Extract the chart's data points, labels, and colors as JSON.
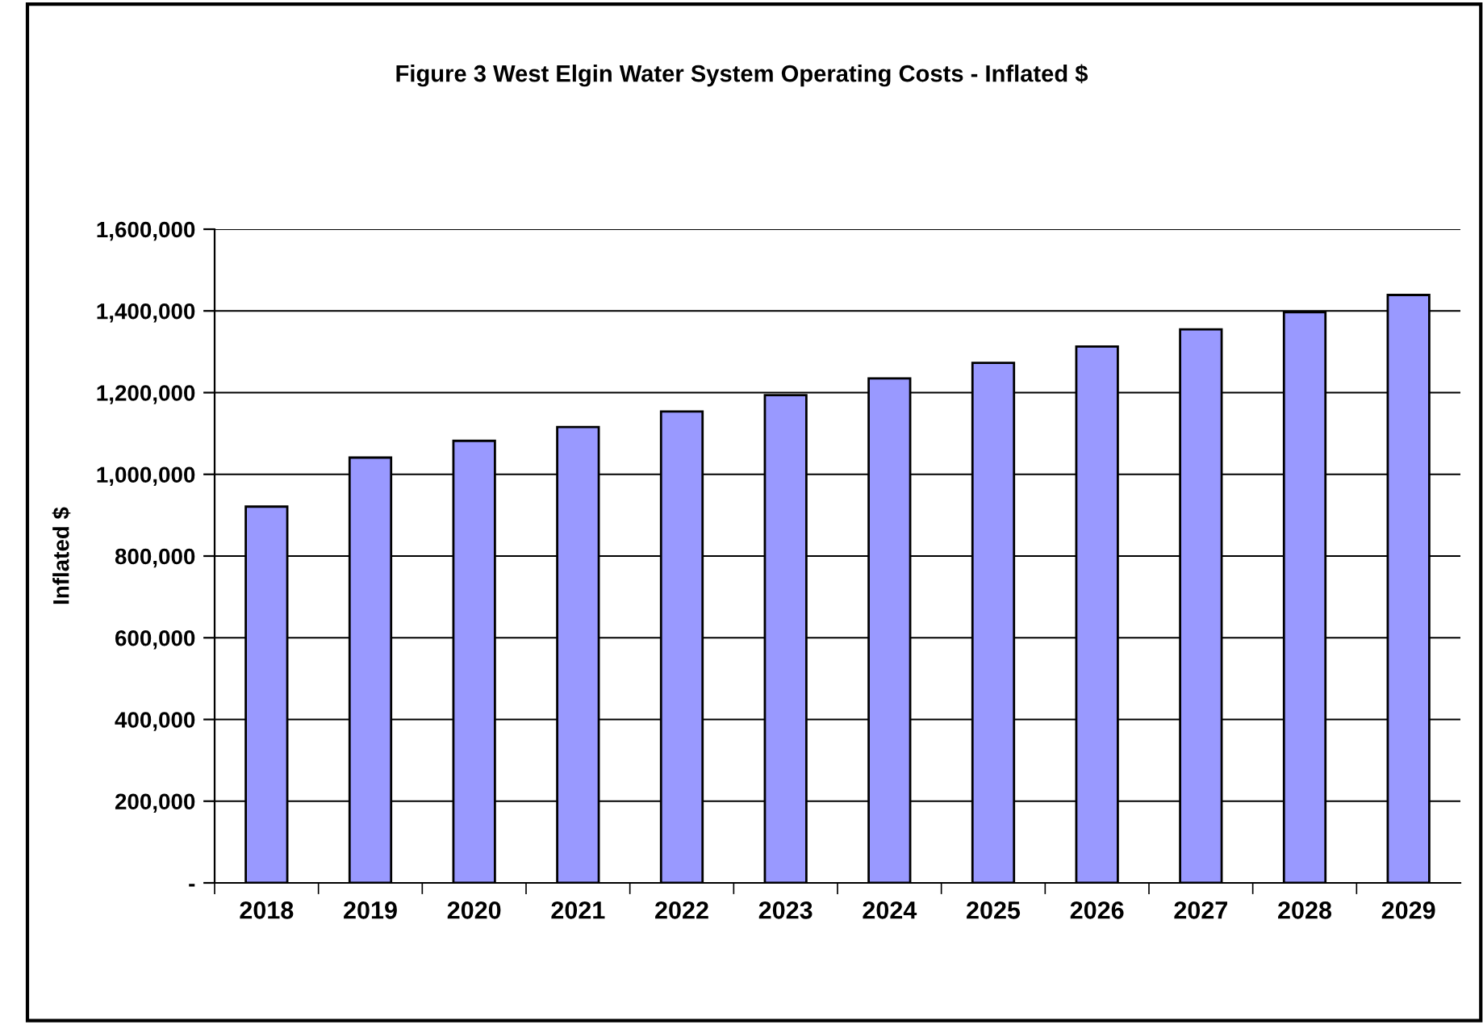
{
  "chart_data": {
    "type": "bar",
    "title": "Figure 3 West Elgin Water System Operating Costs - Inflated $",
    "ylabel": "Inflated $",
    "categories": [
      "2018",
      "2019",
      "2020",
      "2021",
      "2022",
      "2023",
      "2024",
      "2025",
      "2026",
      "2027",
      "2028",
      "2029"
    ],
    "values": [
      921000,
      1041000,
      1082000,
      1116000,
      1154000,
      1194000,
      1235000,
      1273000,
      1313000,
      1355000,
      1397000,
      1439000
    ],
    "color": "#9999ff",
    "ylim": [
      0,
      1600000
    ],
    "yticks": [
      {
        "value": 0,
        "label": "-"
      },
      {
        "value": 200000,
        "label": "200,000"
      },
      {
        "value": 400000,
        "label": "400,000"
      },
      {
        "value": 600000,
        "label": "600,000"
      },
      {
        "value": 800000,
        "label": "800,000"
      },
      {
        "value": 1000000,
        "label": "1,000,000"
      },
      {
        "value": 1200000,
        "label": "1,200,000"
      },
      {
        "value": 1400000,
        "label": "1,400,000"
      },
      {
        "value": 1600000,
        "label": "1,600,000"
      }
    ],
    "grid": "y",
    "legend": false
  }
}
